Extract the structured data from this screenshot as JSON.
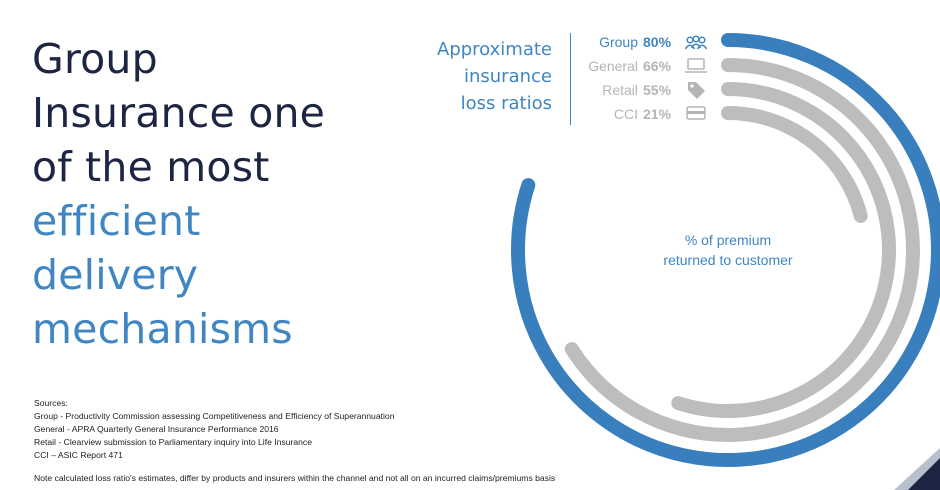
{
  "headline": {
    "line1": "Group",
    "line2": "Insurance one",
    "line3": "of the most",
    "line4": "efficient",
    "line5": "delivery",
    "line6": "mechanisms"
  },
  "chart_data": {
    "type": "radial-bar",
    "title": [
      "Approximate",
      "insurance",
      "loss ratios"
    ],
    "center_label": [
      "% of premium",
      "returned to customer"
    ],
    "unit": "%",
    "series": [
      {
        "label": "Group",
        "value": 80,
        "display": "80%",
        "icon": "people-icon",
        "color": "#3a7fbd",
        "highlight": true
      },
      {
        "label": "General",
        "value": 66,
        "display": "66%",
        "icon": "laptop-icon",
        "color": "#bdbdbd",
        "highlight": false
      },
      {
        "label": "Retail",
        "value": 55,
        "display": "55%",
        "icon": "price-tag-icon",
        "color": "#bdbdbd",
        "highlight": false
      },
      {
        "label": "CCI",
        "value": 21,
        "display": "21%",
        "icon": "credit-card-icon",
        "color": "#bdbdbd",
        "highlight": false
      }
    ]
  },
  "sources": {
    "heading": "Sources:",
    "lines": [
      "Group - Productivity Commission assessing Competitiveness and Efficiency of Superannuation",
      "General - APRA Quarterly General Insurance Performance 2016",
      "Retail - Clearview submission to Parliamentary inquiry into Life Insurance",
      "CCI – ASIC Report 471"
    ],
    "note": "Note calculated loss ratio's estimates, differ by products and insurers within the channel and not all on an incurred claims/premiums basis"
  },
  "colors": {
    "dark_navy": "#1c2541",
    "accent_blue": "#3f86c2",
    "ring_blue": "#3a7fbd",
    "ring_grey": "#bdbdbd",
    "label_grey": "#b5b5b5"
  }
}
